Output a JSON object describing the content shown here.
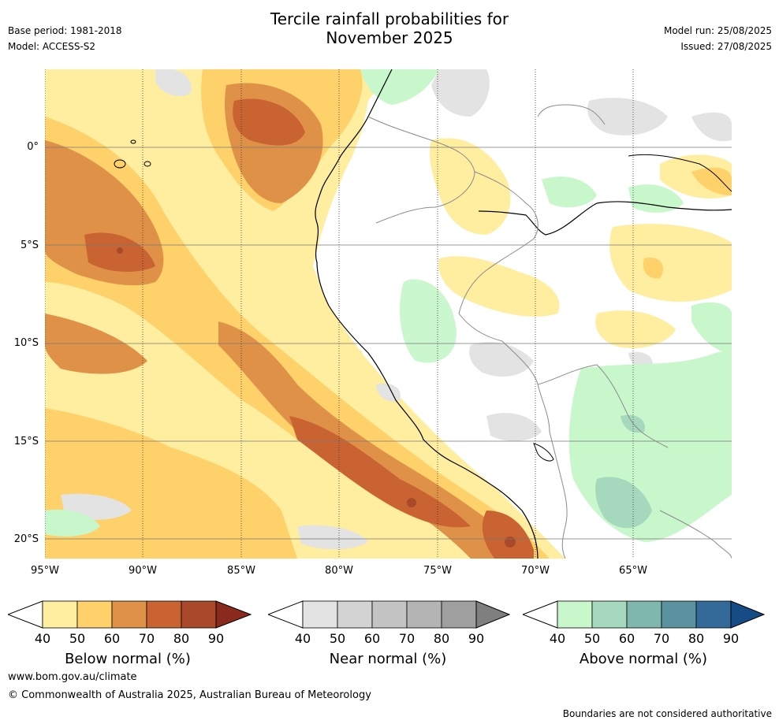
{
  "title_line1": "Tercile rainfall probabilities for",
  "title_line2": "November 2025",
  "meta": {
    "base_period": "Base period: 1981-2018",
    "model": "Model: ACCESS-S2",
    "model_run": "Model run: 25/08/2025",
    "issued": "Issued: 27/08/2025"
  },
  "map": {
    "lat_labels": [
      "0°",
      "5°S",
      "10°S",
      "15°S",
      "20°S"
    ],
    "lon_labels": [
      "95°W",
      "90°W",
      "85°W",
      "80°W",
      "75°W",
      "70°W",
      "65°W"
    ],
    "lon_range": [
      -95,
      -60
    ],
    "lat_range": [
      -21,
      4
    ]
  },
  "colorbars": [
    {
      "id": "below",
      "title": "Below normal (%)",
      "ticks": [
        "40",
        "50",
        "60",
        "70",
        "80",
        "90"
      ],
      "colors": [
        "#ffeda0",
        "#fed16b",
        "#e09148",
        "#c96432",
        "#a9492a",
        "#8a2a1c"
      ]
    },
    {
      "id": "near",
      "title": "Near normal (%)",
      "ticks": [
        "40",
        "50",
        "60",
        "70",
        "80",
        "90"
      ],
      "colors": [
        "#e3e3e3",
        "#d3d3d3",
        "#c4c4c4",
        "#b4b4b4",
        "#9f9f9f",
        "#7f7f7f"
      ]
    },
    {
      "id": "above",
      "title": "Above normal (%)",
      "ticks": [
        "40",
        "50",
        "60",
        "70",
        "80",
        "90"
      ],
      "colors": [
        "#c8f7cc",
        "#a6d8bd",
        "#7fb6ad",
        "#5a92a0",
        "#336a99",
        "#154c85"
      ]
    }
  ],
  "footer": {
    "url": "www.bom.gov.au/climate",
    "copyright": "© Commonwealth of Australia 2025, Australian Bureau of Meteorology",
    "note": "Boundaries are not considered authoritative"
  }
}
